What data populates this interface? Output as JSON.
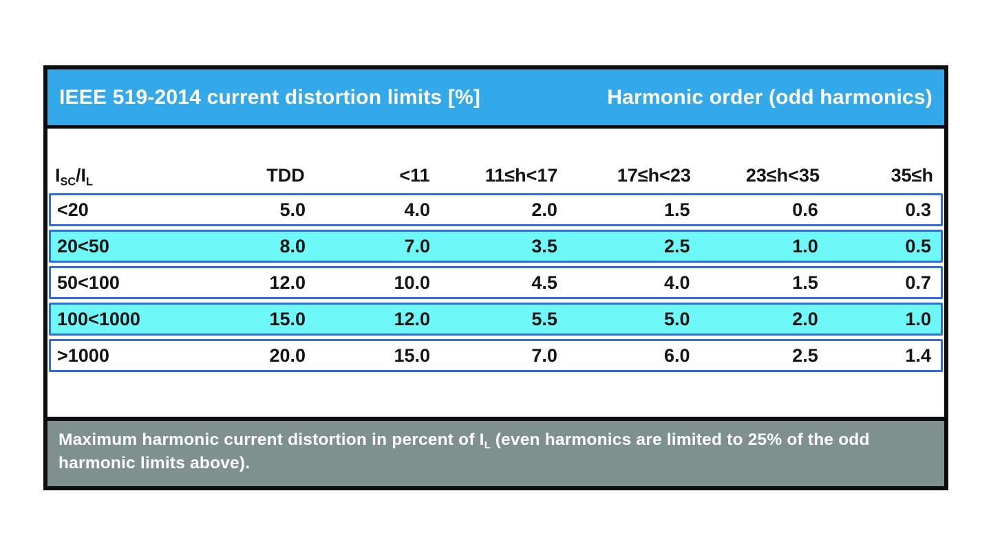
{
  "chart_data": {
    "type": "table",
    "title": "IEEE 519-2014 current distortion limits [%]",
    "group_header": "Harmonic order (odd harmonics)",
    "columns": [
      "Isc/IL",
      "TDD",
      "<11",
      "11≤h<17",
      "17≤h<23",
      "23≤h<35",
      "35≤h"
    ],
    "rows": [
      [
        "<20",
        5.0,
        4.0,
        2.0,
        1.5,
        0.6,
        0.3
      ],
      [
        "20<50",
        8.0,
        7.0,
        3.5,
        2.5,
        1.0,
        0.5
      ],
      [
        "50<100",
        12.0,
        10.0,
        4.5,
        4.0,
        1.5,
        0.7
      ],
      [
        "100<1000",
        15.0,
        12.0,
        5.5,
        5.0,
        2.0,
        1.0
      ],
      [
        ">1000",
        20.0,
        15.0,
        7.0,
        6.0,
        2.5,
        1.4
      ]
    ],
    "note": "Maximum harmonic current distortion in percent of IL (even harmonics are limited to 25% of the odd harmonic limits above)."
  },
  "table": {
    "ratio_header": {
      "base1": "I",
      "sub1": "SC",
      "base2": "/I",
      "sub2": "L"
    }
  },
  "footer": {
    "note_pre": "Maximum harmonic current distortion in percent of I",
    "note_sub": "L",
    "note_post": " (even harmonics are limited to 25% of the odd harmonic limits above)."
  },
  "colors": {
    "header_blue": "#33a9ea",
    "row_border_blue": "#2d6ce3",
    "highlight_cyan": "#6ef8f8",
    "footnote_gray": "#7e918e",
    "frame_black": "#0d0d0d"
  }
}
